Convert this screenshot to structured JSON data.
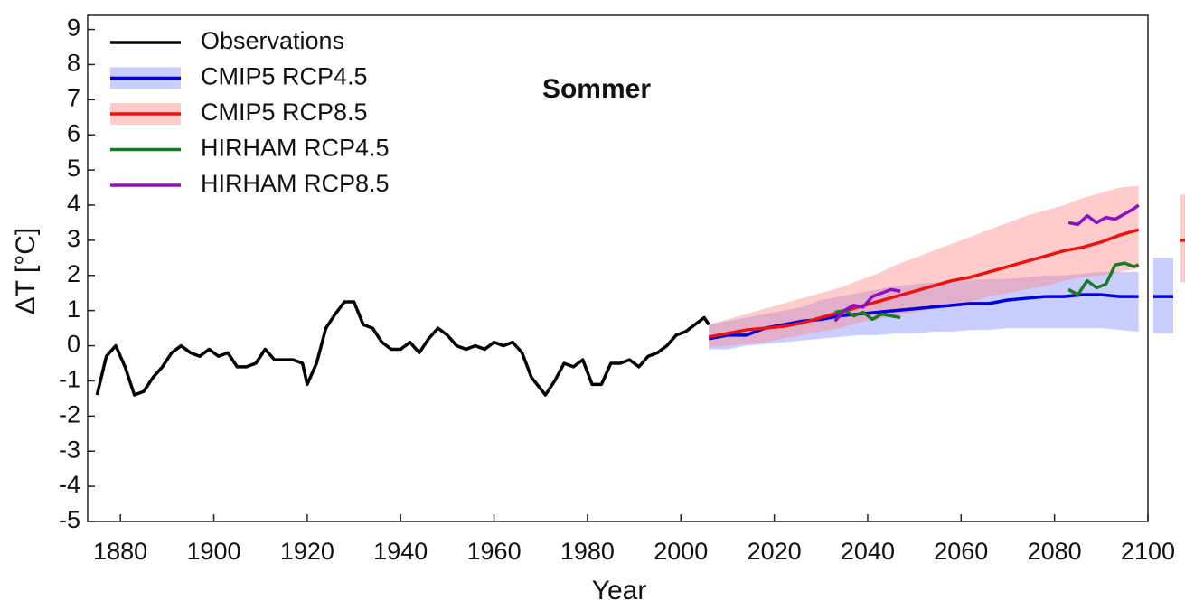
{
  "chart_data": {
    "type": "line",
    "title": "Sommer",
    "x_label": "Year",
    "y_label": "ΔT [°C]",
    "xlim": [
      1873,
      2100
    ],
    "ylim": [
      -5,
      9.4
    ],
    "xticks": [
      1880,
      1900,
      1920,
      1940,
      1960,
      1980,
      2000,
      2020,
      2040,
      2060,
      2080,
      2100
    ],
    "yticks": [
      -5,
      -4,
      -3,
      -2,
      -1,
      0,
      1,
      2,
      3,
      4,
      5,
      6,
      7,
      8,
      9
    ],
    "legend": "upper left",
    "series": [
      {
        "name": "Observations",
        "color": "#000000",
        "x": [
          1875,
          1877,
          1879,
          1881,
          1883,
          1885,
          1887,
          1889,
          1891,
          1893,
          1895,
          1897,
          1899,
          1901,
          1903,
          1905,
          1907,
          1909,
          1911,
          1913,
          1915,
          1917,
          1919,
          1920,
          1922,
          1924,
          1926,
          1928,
          1930,
          1932,
          1934,
          1936,
          1938,
          1940,
          1942,
          1944,
          1946,
          1948,
          1950,
          1952,
          1954,
          1956,
          1958,
          1960,
          1962,
          1964,
          1966,
          1968,
          1971,
          1973,
          1975,
          1977,
          1979,
          1981,
          1983,
          1985,
          1987,
          1989,
          1991,
          1993,
          1995,
          1997,
          1999,
          2001,
          2003,
          2005,
          2006
        ],
        "values": [
          -1.4,
          -0.3,
          0.0,
          -0.6,
          -1.4,
          -1.3,
          -0.9,
          -0.6,
          -0.2,
          0.0,
          -0.2,
          -0.3,
          -0.1,
          -0.3,
          -0.2,
          -0.6,
          -0.6,
          -0.5,
          -0.1,
          -0.4,
          -0.4,
          -0.4,
          -0.5,
          -1.1,
          -0.5,
          0.5,
          0.9,
          1.25,
          1.25,
          0.6,
          0.5,
          0.1,
          -0.1,
          -0.1,
          0.1,
          -0.2,
          0.2,
          0.5,
          0.3,
          0.0,
          -0.1,
          0.0,
          -0.1,
          0.1,
          0.0,
          0.1,
          -0.2,
          -0.9,
          -1.4,
          -1.0,
          -0.5,
          -0.6,
          -0.4,
          -1.1,
          -1.1,
          -0.5,
          -0.5,
          -0.4,
          -0.6,
          -0.3,
          -0.2,
          0.0,
          0.3,
          0.4,
          0.6,
          0.8,
          0.6
        ]
      },
      {
        "name": "CMIP5 RCP4.5",
        "color": "#0000dd",
        "band_color": "#8a90ff",
        "x": [
          2006,
          2010,
          2014,
          2018,
          2022,
          2026,
          2030,
          2034,
          2038,
          2042,
          2046,
          2050,
          2054,
          2058,
          2062,
          2066,
          2070,
          2074,
          2078,
          2082,
          2086,
          2090,
          2094,
          2098
        ],
        "values": [
          0.2,
          0.3,
          0.3,
          0.5,
          0.6,
          0.7,
          0.75,
          0.85,
          0.9,
          0.95,
          1.0,
          1.05,
          1.1,
          1.15,
          1.2,
          1.2,
          1.3,
          1.35,
          1.4,
          1.4,
          1.45,
          1.45,
          1.4,
          1.4
        ],
        "lower": [
          -0.1,
          -0.1,
          0.0,
          0.05,
          0.1,
          0.15,
          0.2,
          0.25,
          0.3,
          0.3,
          0.35,
          0.35,
          0.4,
          0.4,
          0.45,
          0.45,
          0.5,
          0.5,
          0.5,
          0.5,
          0.5,
          0.5,
          0.45,
          0.4
        ],
        "upper": [
          0.6,
          0.7,
          0.8,
          0.9,
          1.0,
          1.1,
          1.3,
          1.4,
          1.5,
          1.6,
          1.7,
          1.75,
          1.8,
          1.8,
          1.85,
          1.9,
          1.9,
          1.95,
          2.0,
          2.0,
          2.05,
          2.1,
          2.1,
          2.1
        ],
        "end_range": [
          0.35,
          2.5
        ],
        "end_mean": 1.4
      },
      {
        "name": "CMIP5 RCP8.5",
        "color": "#ee1111",
        "band_color": "#ff8c8c",
        "x": [
          2006,
          2010,
          2014,
          2018,
          2022,
          2026,
          2030,
          2034,
          2038,
          2042,
          2046,
          2050,
          2054,
          2058,
          2062,
          2066,
          2070,
          2074,
          2078,
          2082,
          2086,
          2090,
          2094,
          2098
        ],
        "values": [
          0.25,
          0.35,
          0.45,
          0.5,
          0.55,
          0.65,
          0.8,
          0.95,
          1.1,
          1.25,
          1.4,
          1.55,
          1.7,
          1.85,
          1.95,
          2.1,
          2.25,
          2.4,
          2.55,
          2.7,
          2.8,
          2.95,
          3.15,
          3.3
        ],
        "lower": [
          -0.05,
          0.0,
          0.05,
          0.1,
          0.2,
          0.3,
          0.4,
          0.5,
          0.65,
          0.75,
          0.85,
          0.95,
          1.05,
          1.15,
          1.25,
          1.4,
          1.5,
          1.6,
          1.7,
          1.85,
          1.95,
          2.0,
          2.1,
          2.2
        ],
        "upper": [
          0.6,
          0.75,
          0.9,
          1.05,
          1.2,
          1.35,
          1.5,
          1.65,
          1.85,
          2.05,
          2.3,
          2.5,
          2.7,
          2.9,
          3.1,
          3.3,
          3.5,
          3.7,
          3.85,
          4.0,
          4.2,
          4.35,
          4.5,
          4.55
        ],
        "end_range": [
          1.8,
          4.3
        ],
        "end_mean": 3.0
      },
      {
        "name": "HIRHAM RCP4.5",
        "color": "#1a7a22",
        "x": [
          2033,
          2035,
          2037,
          2039,
          2041,
          2043,
          2045,
          2047,
          2065,
          2083,
          2085,
          2087,
          2089,
          2091,
          2093,
          2095,
          2097,
          2098
        ],
        "values": [
          0.95,
          1.0,
          0.85,
          0.95,
          0.75,
          0.9,
          0.85,
          0.8,
          null,
          1.6,
          1.45,
          1.85,
          1.65,
          1.75,
          2.3,
          2.35,
          2.25,
          2.3
        ]
      },
      {
        "name": "HIRHAM RCP8.5",
        "color": "#8a10c0",
        "x": [
          2033,
          2035,
          2037,
          2039,
          2041,
          2043,
          2045,
          2047,
          2065,
          2083,
          2085,
          2087,
          2089,
          2091,
          2093,
          2095,
          2097,
          2098
        ],
        "values": [
          0.7,
          1.0,
          1.15,
          1.1,
          1.4,
          1.5,
          1.6,
          1.55,
          null,
          3.5,
          3.45,
          3.7,
          3.5,
          3.65,
          3.6,
          3.75,
          3.9,
          4.0
        ]
      }
    ]
  }
}
